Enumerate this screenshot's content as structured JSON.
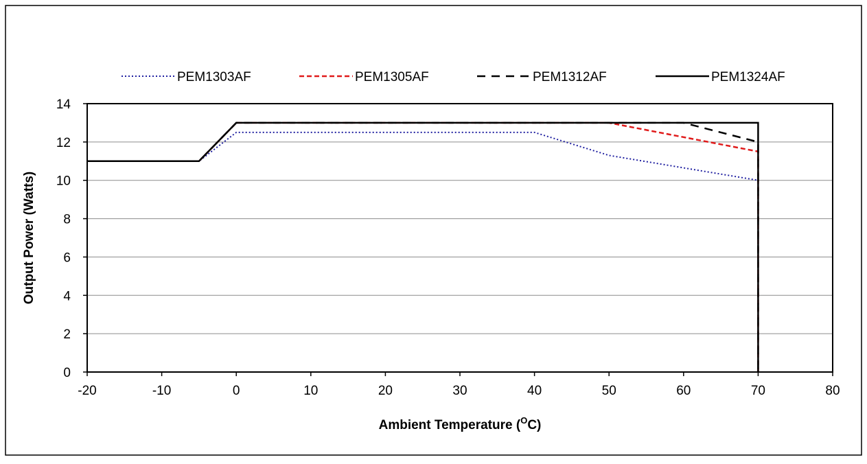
{
  "chart_data": {
    "type": "line",
    "title": "",
    "xlabel": "Ambient Temperature (",
    "xlabel_sup": "O",
    "xlabel_suffix": "C)",
    "ylabel": "Output Power (Watts)",
    "xlim": [
      -20,
      80
    ],
    "ylim": [
      0,
      14
    ],
    "xticks": [
      -20,
      -10,
      0,
      10,
      20,
      30,
      40,
      50,
      60,
      70,
      80
    ],
    "yticks": [
      0,
      2,
      4,
      6,
      8,
      10,
      12,
      14
    ],
    "grid": "horizontal",
    "legend_position": "top",
    "series": [
      {
        "name": "PEM1303AF",
        "color": "#1f1fa0",
        "style": "dotted",
        "points": [
          [
            -20,
            11
          ],
          [
            -5,
            11
          ],
          [
            0,
            12.5
          ],
          [
            40,
            12.5
          ],
          [
            50,
            11.3
          ],
          [
            70,
            10
          ],
          [
            70,
            0
          ]
        ]
      },
      {
        "name": "PEM1305AF",
        "color": "#e01b1b",
        "style": "dashed",
        "points": [
          [
            -20,
            11
          ],
          [
            -5,
            11
          ],
          [
            0,
            13
          ],
          [
            50,
            13
          ],
          [
            70,
            11.5
          ],
          [
            70,
            0
          ]
        ]
      },
      {
        "name": "PEM1312AF",
        "color": "#000000",
        "style": "long-dashed",
        "points": [
          [
            -20,
            11
          ],
          [
            -5,
            11
          ],
          [
            0,
            13
          ],
          [
            60,
            13
          ],
          [
            70,
            12
          ],
          [
            70,
            0
          ]
        ]
      },
      {
        "name": "PEM1324AF",
        "color": "#000000",
        "style": "solid",
        "points": [
          [
            -20,
            11
          ],
          [
            -5,
            11
          ],
          [
            0,
            13
          ],
          [
            70,
            13
          ],
          [
            70,
            0
          ]
        ]
      }
    ]
  }
}
